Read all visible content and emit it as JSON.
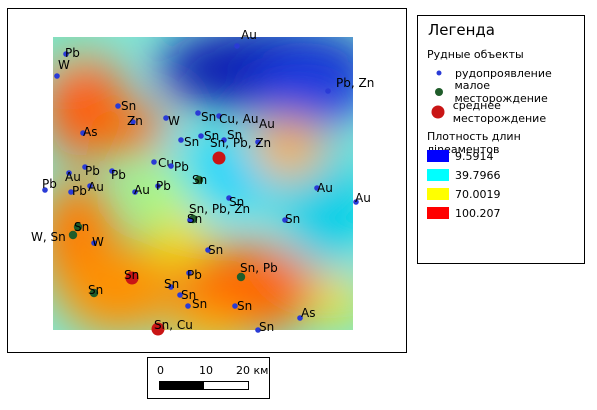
{
  "legend": {
    "title": "Легенда",
    "ore_group": "Рудные объекты",
    "ore_items": [
      {
        "label": "рудопроявление",
        "color": "#2a3bd6"
      },
      {
        "label": "малое месторождение",
        "color": "#1f5c2a"
      },
      {
        "label": "среднее месторождение",
        "color": "#c91515"
      }
    ],
    "density_group": "Плотность длин лineаментов",
    "density_items": [
      {
        "label": "9.5914",
        "color": "#0000ff"
      },
      {
        "label": "39.7966",
        "color": "#00ffff"
      },
      {
        "label": "70.0019",
        "color": "#ffff00"
      },
      {
        "label": "100.207",
        "color": "#ff0000"
      }
    ]
  },
  "scalebar": {
    "ticks": [
      "0",
      "10",
      "20 км"
    ]
  },
  "map": {
    "points": [
      {
        "type": "occurrence",
        "label": "Pb"
      },
      {
        "type": "occurrence",
        "label": "W"
      },
      {
        "type": "occurrence",
        "label": "Au"
      },
      {
        "type": "occurrence",
        "label": "Pb, Zn"
      },
      {
        "type": "occurrence",
        "label": "Sn"
      },
      {
        "type": "occurrence",
        "label": "Zn"
      },
      {
        "type": "occurrence",
        "label": "W"
      },
      {
        "type": "occurrence",
        "label": "Sn"
      },
      {
        "type": "occurrence",
        "label": "Cu, Au"
      },
      {
        "type": "occurrence",
        "label": "As"
      },
      {
        "type": "occurrence",
        "label": "Sn"
      },
      {
        "type": "occurrence",
        "label": "Sn"
      },
      {
        "type": "occurrence",
        "label": "Sn"
      },
      {
        "type": "occurrence",
        "label": "Au"
      },
      {
        "type": "medium",
        "label": "Sn, Pb, Zn"
      },
      {
        "type": "occurrence",
        "label": "Cu"
      },
      {
        "type": "occurrence",
        "label": "Pb"
      },
      {
        "type": "occurrence",
        "label": "Au"
      },
      {
        "type": "occurrence",
        "label": "Pb"
      },
      {
        "type": "occurrence",
        "label": "Pb"
      },
      {
        "type": "small",
        "label": "Sn"
      },
      {
        "type": "occurrence",
        "label": "Pb"
      },
      {
        "type": "occurrence",
        "label": "Au"
      },
      {
        "type": "occurrence",
        "label": "Pb"
      },
      {
        "type": "occurrence",
        "label": "Au"
      },
      {
        "type": "occurrence",
        "label": "Pb"
      },
      {
        "type": "occurrence",
        "label": "Sn"
      },
      {
        "type": "occurrence",
        "label": "Au"
      },
      {
        "type": "occurrence",
        "label": "Au"
      },
      {
        "type": "small",
        "label": "Sn, Pb, Zn"
      },
      {
        "type": "small",
        "label": "Sn"
      },
      {
        "type": "occurrence",
        "label": "Sn"
      },
      {
        "type": "occurrence",
        "label": "Sn"
      },
      {
        "type": "small",
        "label": "W, Sn"
      },
      {
        "type": "occurrence",
        "label": "W"
      },
      {
        "type": "occurrence",
        "label": "Sn"
      },
      {
        "type": "occurrence",
        "label": "Pb"
      },
      {
        "type": "small",
        "label": "Sn, Pb"
      },
      {
        "type": "medium",
        "label": "Sn"
      },
      {
        "type": "occurrence",
        "label": "Sn"
      },
      {
        "type": "small",
        "label": "Sn"
      },
      {
        "type": "occurrence",
        "label": "Sn"
      },
      {
        "type": "occurrence",
        "label": "Sn"
      },
      {
        "type": "occurrence",
        "label": "Sn"
      },
      {
        "type": "occurrence",
        "label": "As"
      },
      {
        "type": "occurrence",
        "label": "Sn"
      },
      {
        "type": "medium",
        "label": "Sn, Cu"
      }
    ]
  }
}
